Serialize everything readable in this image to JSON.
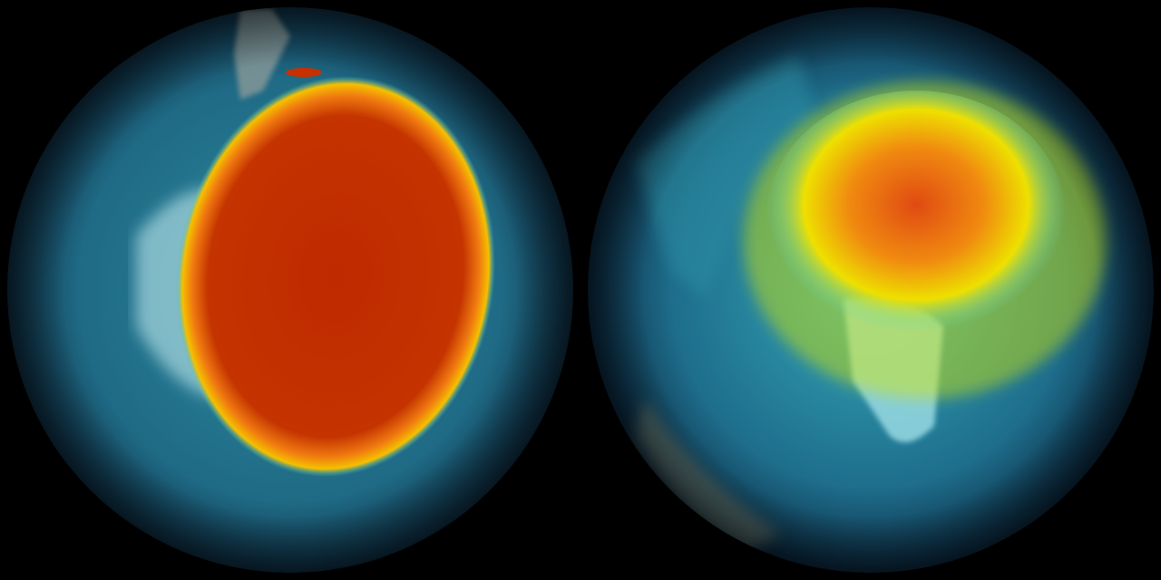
{
  "scene": {
    "background": "#000000",
    "globes": [
      {
        "view": "south-polar",
        "ocean_color": "#1f5f7a",
        "hotspot_core": "#c02a00",
        "hotspot_ring": "#f2b400",
        "ice_color": "#a9d8e0"
      },
      {
        "view": "north-polar",
        "ocean_color": "#1b5a78",
        "hotspot_core": "#e2581a",
        "hotspot_ring": "#e8d400",
        "ice_color": "#9fe0e8"
      }
    ]
  }
}
